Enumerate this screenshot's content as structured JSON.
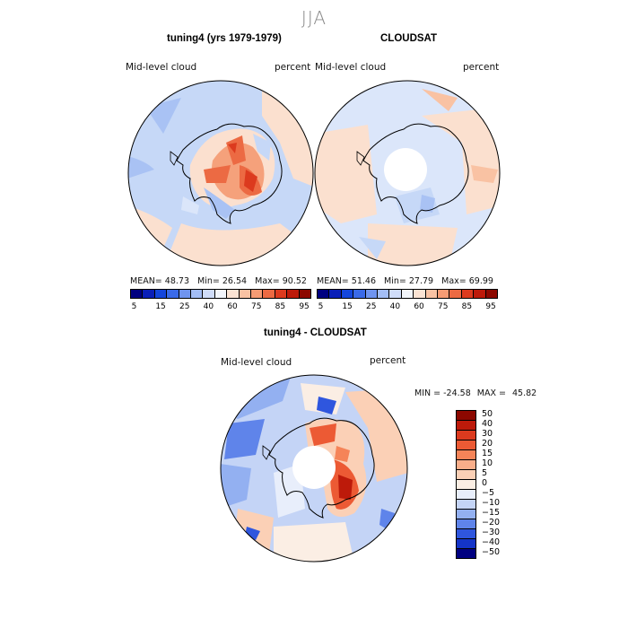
{
  "season": "JJA",
  "panel_left": {
    "title": "tuning4 (yrs 1979-1979)",
    "variable": "Mid-level cloud",
    "units": "percent",
    "stats": {
      "mean_label": "MEAN=",
      "mean": "48.73",
      "min_label": "Min=",
      "min": "26.54",
      "max_label": "Max=",
      "max": "90.52"
    }
  },
  "panel_right": {
    "title": "CLOUDSAT",
    "variable": "Mid-level cloud",
    "units": "percent",
    "stats": {
      "mean_label": "MEAN=",
      "mean": "51.46",
      "min_label": "Min=",
      "min": "27.79",
      "max_label": "Max=",
      "max": "69.99"
    }
  },
  "colorbar_abs": {
    "colors": [
      "#000080",
      "#0a1fb8",
      "#1446dc",
      "#3a6ae8",
      "#6f94ef",
      "#a3bdf5",
      "#cfdcf9",
      "#f2f5fb",
      "#fbe3d3",
      "#f9c2a3",
      "#f59b74",
      "#ec6a43",
      "#dc3a1e",
      "#bd1a0a",
      "#8c0800"
    ],
    "ticks": [
      "5",
      "15",
      "25",
      "40",
      "60",
      "75",
      "85",
      "95"
    ]
  },
  "panel_diff": {
    "title": "tuning4 - CLOUDSAT",
    "variable": "Mid-level cloud",
    "units": "percent",
    "min_label": "MIN =",
    "min": "-24.58",
    "max_label": "MAX =",
    "max": "45.82"
  },
  "colorbar_diff": {
    "colors": [
      "#8c0800",
      "#bd1a0a",
      "#dc3a1e",
      "#ec5a34",
      "#f58458",
      "#f9ae8a",
      "#fbd0b6",
      "#fbeee4",
      "#e8eefb",
      "#c4d4f6",
      "#93b0f1",
      "#5f84ea",
      "#2f56de",
      "#1434c8",
      "#000080"
    ],
    "ticks": [
      "50",
      "40",
      "30",
      "20",
      "15",
      "10",
      "5",
      "0",
      "−5",
      "−10",
      "−15",
      "−20",
      "−30",
      "−40",
      "−50"
    ]
  }
}
